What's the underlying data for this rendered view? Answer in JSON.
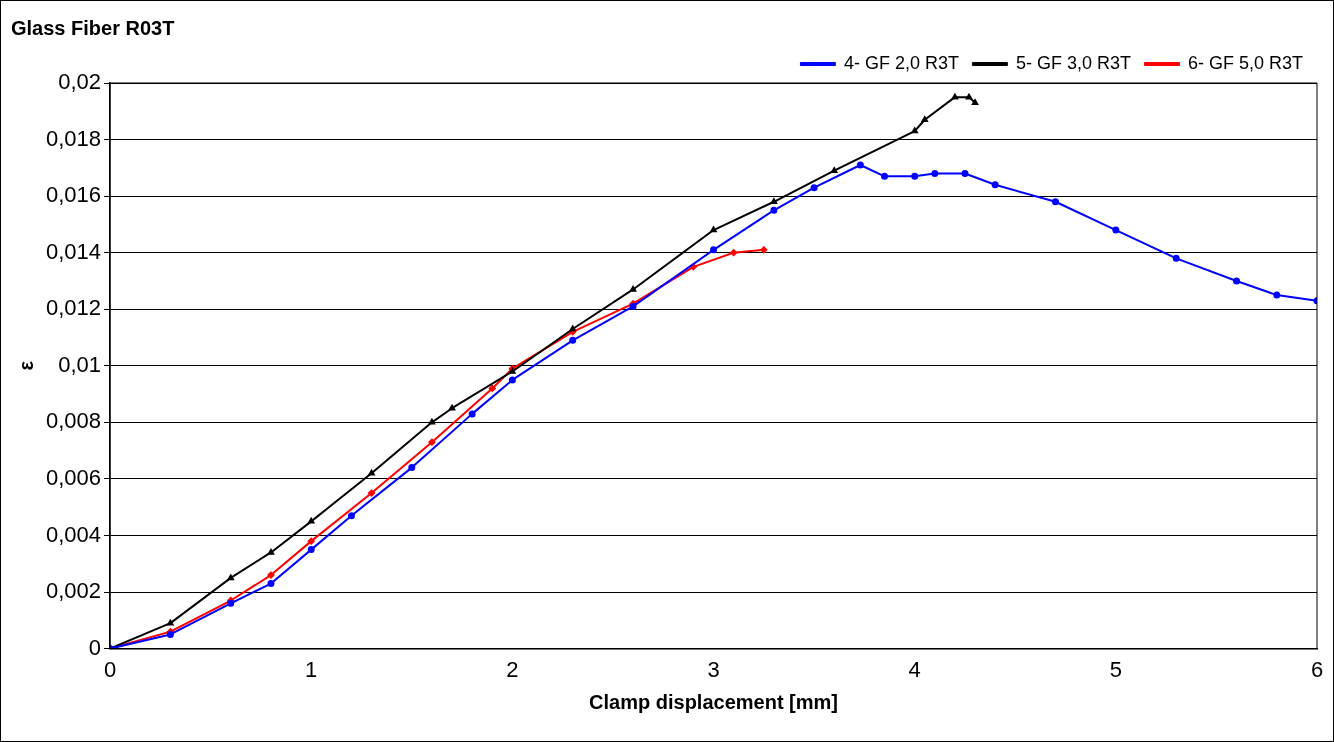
{
  "chart_data": {
    "type": "line",
    "title": "Glass Fiber R03T",
    "xlabel": "Clamp displacement [mm]",
    "ylabel": "ε",
    "legend": "top right",
    "grid": "y",
    "line_style": "solid",
    "xlim": [
      0,
      6
    ],
    "xticks": [
      0,
      1,
      2,
      3,
      4,
      5,
      6
    ],
    "ylim": [
      0,
      0.02
    ],
    "yticks": [
      0,
      {
        "value": 0.002,
        "label": "0,002"
      },
      {
        "value": 0.004,
        "label": "0,004"
      },
      {
        "value": 0.006,
        "label": "0,006"
      },
      {
        "value": 0.008,
        "label": "0,008"
      },
      {
        "value": 0.01,
        "label": "0,01"
      },
      {
        "value": 0.012,
        "label": "0,012"
      },
      {
        "value": 0.014,
        "label": "0,014"
      },
      {
        "value": 0.016,
        "label": "0,016"
      },
      {
        "value": 0.018,
        "label": "0,018"
      },
      {
        "value": 0.02,
        "label": "0,02"
      }
    ],
    "series": [
      {
        "name": "4- GF 2,0 R3T",
        "color": "#0000ff",
        "marker": "circle",
        "x": [
          0,
          0.3,
          0.6,
          0.8,
          1.0,
          1.2,
          1.5,
          1.8,
          2.0,
          2.3,
          2.6,
          3.0,
          3.3,
          3.5,
          3.73,
          3.85,
          4.0,
          4.1,
          4.25,
          4.4,
          4.7,
          5.0,
          5.3,
          5.6,
          5.8,
          6.0
        ],
        "values": [
          0,
          0.0005,
          0.0016,
          0.0023,
          0.0035,
          0.0047,
          0.0064,
          0.0083,
          0.0095,
          0.0109,
          0.0121,
          0.0141,
          0.0155,
          0.0163,
          0.0171,
          0.0167,
          0.0167,
          0.0168,
          0.0168,
          0.0164,
          0.0158,
          0.0148,
          0.0138,
          0.013,
          0.0125,
          0.0123
        ]
      },
      {
        "name": "5- GF 3,0 R3T",
        "color": "#000000",
        "marker": "triangle",
        "x": [
          0,
          0.3,
          0.6,
          0.8,
          1.0,
          1.3,
          1.6,
          1.7,
          2.0,
          2.3,
          2.6,
          3.0,
          3.3,
          3.6,
          4.0,
          4.05,
          4.2,
          4.27,
          4.3
        ],
        "values": [
          0,
          0.0009,
          0.0025,
          0.0034,
          0.0045,
          0.0062,
          0.008,
          0.0085,
          0.0098,
          0.0113,
          0.0127,
          0.0148,
          0.0158,
          0.0169,
          0.0183,
          0.0187,
          0.0195,
          0.0195,
          0.0193
        ]
      },
      {
        "name": "6- GF 5,0 R3T",
        "color": "#ff0000",
        "marker": "diamond",
        "x": [
          0,
          0.3,
          0.6,
          0.8,
          1.0,
          1.3,
          1.6,
          1.9,
          2.0,
          2.3,
          2.6,
          2.9,
          3.1,
          3.25
        ],
        "values": [
          0,
          0.0006,
          0.0017,
          0.0026,
          0.0038,
          0.0055,
          0.0073,
          0.0092,
          0.0099,
          0.0112,
          0.0122,
          0.0135,
          0.014,
          0.0141
        ]
      }
    ]
  }
}
